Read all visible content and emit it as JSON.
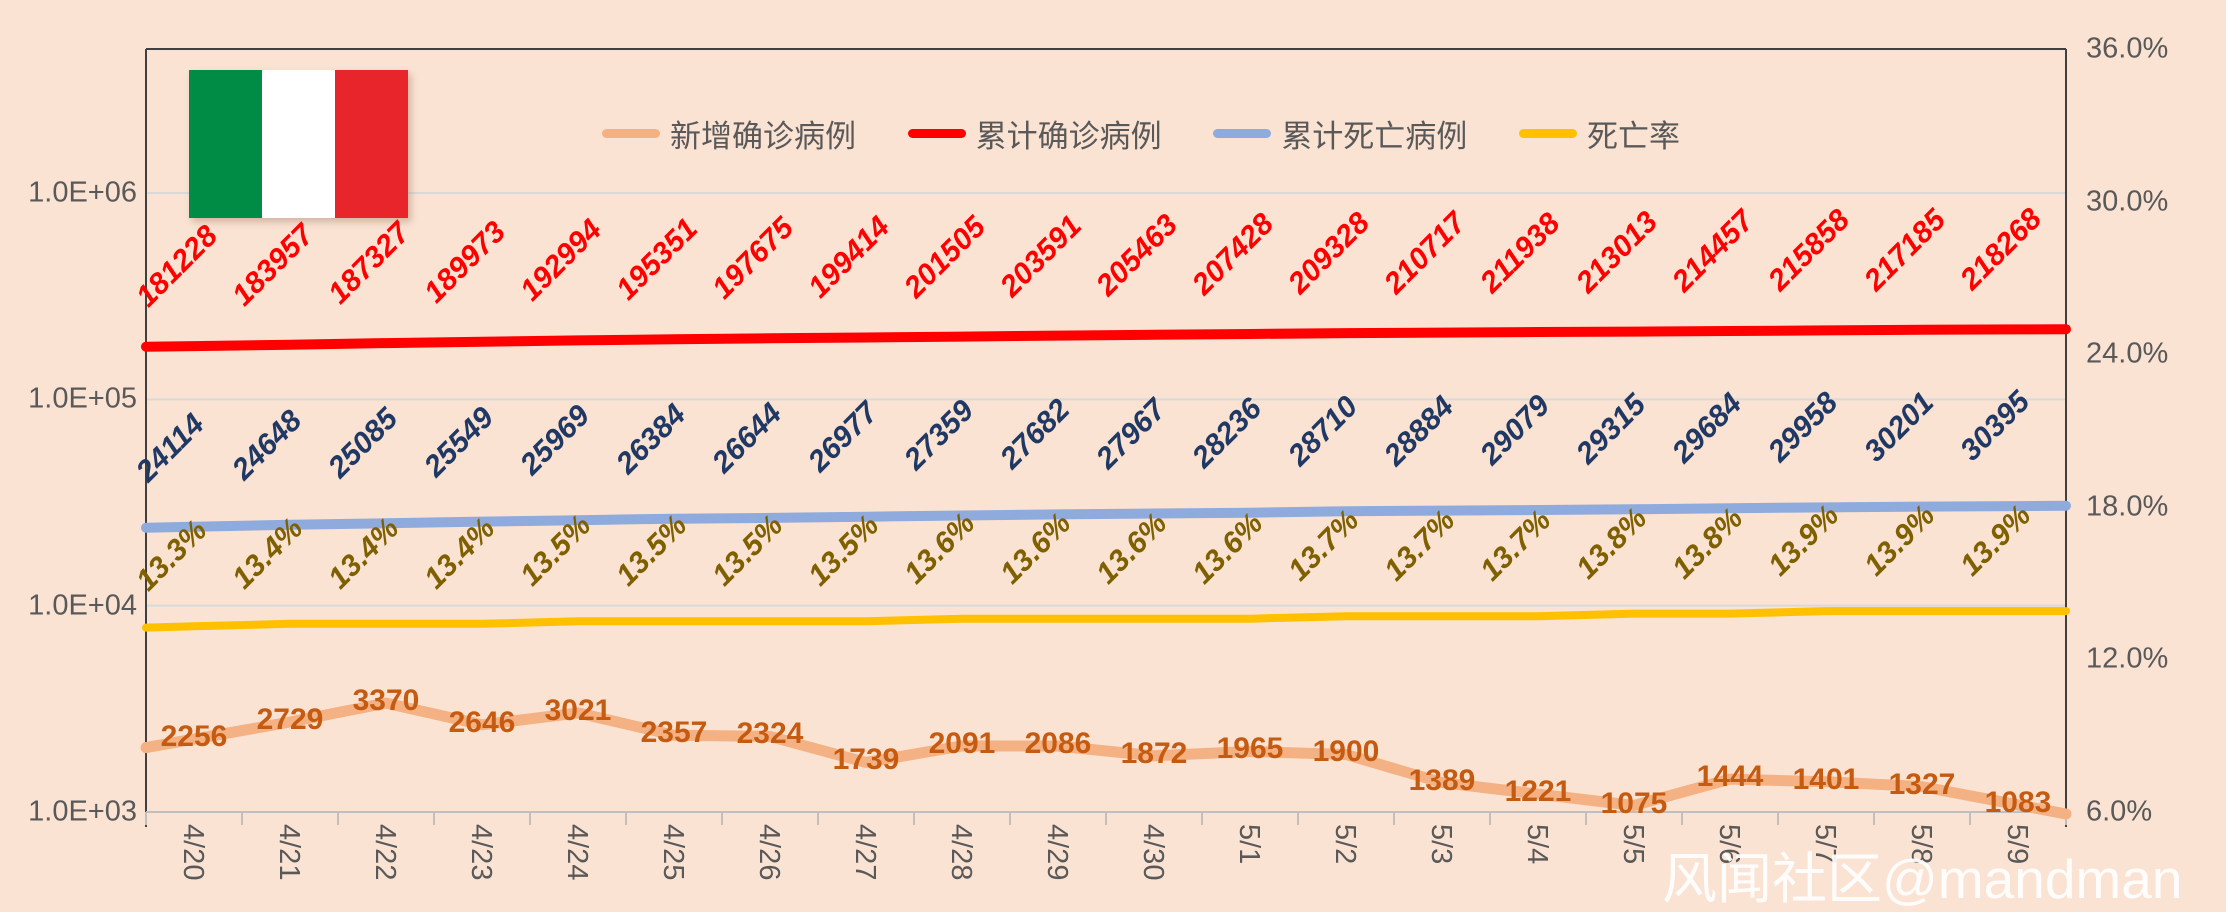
{
  "watermark": "风闻社区@mandman",
  "flag": {
    "name": "italy-flag",
    "colors": [
      "#008C45",
      "#ffffff",
      "#e8252a"
    ]
  },
  "legend": [
    {
      "label": "新增确诊病例",
      "color": "#f4b183"
    },
    {
      "label": "累计确诊病例",
      "color": "#ff0000"
    },
    {
      "label": "累计死亡病例",
      "color": "#8faadc"
    },
    {
      "label": "死亡率",
      "color": "#ffc000"
    }
  ],
  "left_axis": {
    "labels": [
      "1.0E+06",
      "1.0E+05",
      "1.0E+04",
      "1.0E+03"
    ]
  },
  "right_axis": {
    "labels": [
      "36.0%",
      "30.0%",
      "24.0%",
      "18.0%",
      "12.0%",
      "6.0%"
    ]
  },
  "chart_data": {
    "type": "line",
    "title": "",
    "legend_position": "top",
    "grid": "horizontal",
    "left_axis_type": "log",
    "left_range": [
      1000,
      1000000
    ],
    "right_axis_type": "percent",
    "right_range": [
      6,
      36
    ],
    "categories": [
      "4/20",
      "4/21",
      "4/22",
      "4/23",
      "4/24",
      "4/25",
      "4/26",
      "4/27",
      "4/28",
      "4/29",
      "4/30",
      "5/1",
      "5/2",
      "5/3",
      "5/4",
      "5/5",
      "5/6",
      "5/7",
      "5/8",
      "5/9"
    ],
    "series": [
      {
        "name": "新增确诊病例",
        "axis": "log",
        "color": "#f4b183",
        "label_color": "#c55a11",
        "values": [
          2256,
          2729,
          3370,
          2646,
          3021,
          2357,
          2324,
          1739,
          2091,
          2086,
          1872,
          1965,
          1900,
          1389,
          1221,
          1075,
          1444,
          1401,
          1327,
          1083
        ]
      },
      {
        "name": "累计确诊病例",
        "axis": "log",
        "color": "#ff0000",
        "label_color": "#ff0000",
        "values": [
          181228,
          183957,
          187327,
          189973,
          192994,
          195351,
          197675,
          199414,
          201505,
          203591,
          205463,
          207428,
          209328,
          210717,
          211938,
          213013,
          214457,
          215858,
          217185,
          218268
        ]
      },
      {
        "name": "累计死亡病例",
        "axis": "log",
        "color": "#8faadc",
        "label_color": "#1f3864",
        "values": [
          24114,
          24648,
          25085,
          25549,
          25969,
          26384,
          26644,
          26977,
          27359,
          27682,
          27967,
          28236,
          28710,
          28884,
          29079,
          29315,
          29684,
          29958,
          30201,
          30395
        ]
      },
      {
        "name": "死亡率",
        "axis": "percent",
        "color": "#ffc000",
        "label_color": "#7f6000",
        "label_format": "percent1",
        "values": [
          13.3,
          13.4,
          13.4,
          13.4,
          13.5,
          13.5,
          13.5,
          13.5,
          13.6,
          13.6,
          13.6,
          13.6,
          13.7,
          13.7,
          13.7,
          13.8,
          13.8,
          13.9,
          13.9,
          13.9
        ]
      }
    ]
  }
}
